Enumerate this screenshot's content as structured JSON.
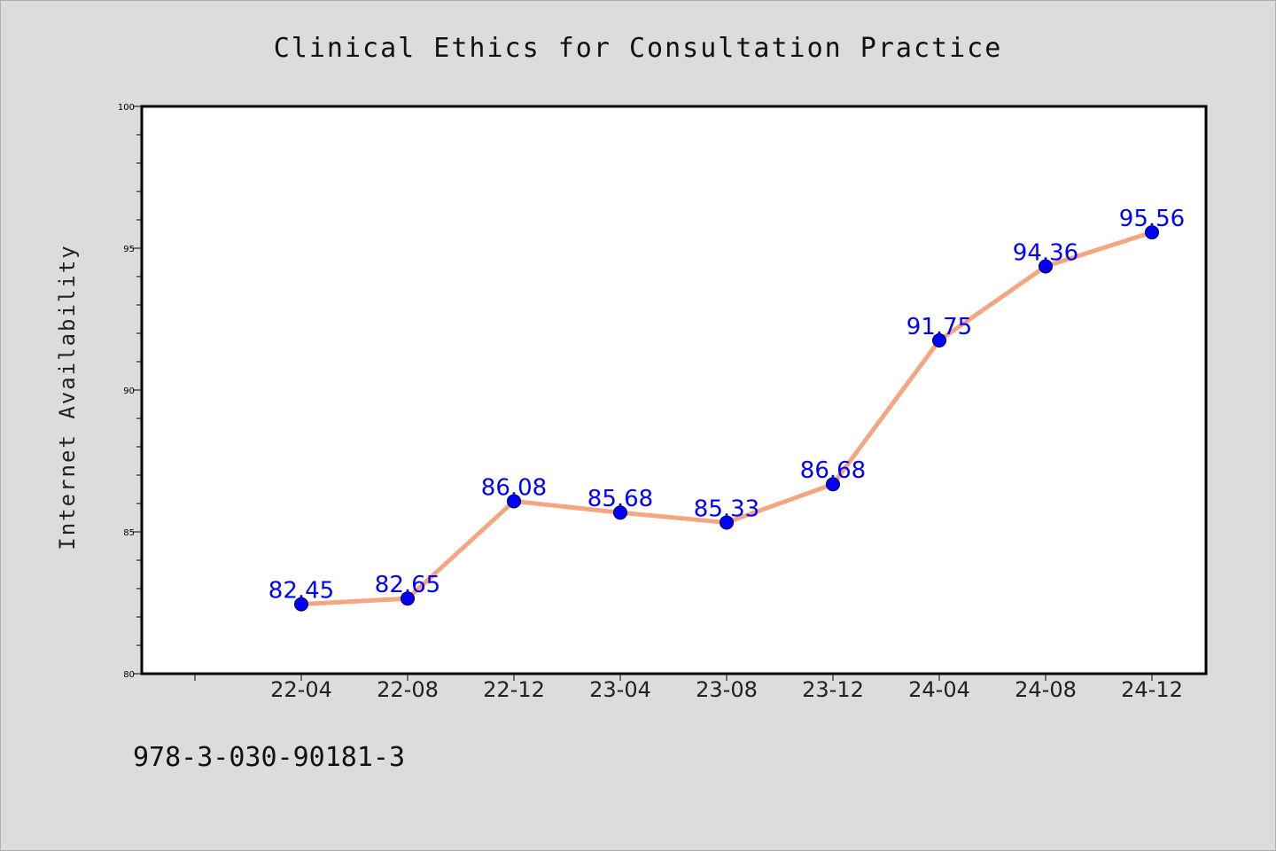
{
  "chart_data": {
    "type": "line",
    "title": "Clinical Ethics for Consultation Practice",
    "xlabel": "",
    "ylabel": "Internet Availability",
    "categories": [
      "22-04",
      "22-08",
      "22-12",
      "23-04",
      "23-08",
      "23-12",
      "24-04",
      "24-08",
      "24-12"
    ],
    "values": [
      82.45,
      82.65,
      86.08,
      85.68,
      85.33,
      86.68,
      91.75,
      94.36,
      95.56
    ],
    "value_labels": [
      "82.45",
      "82.65",
      "86.08",
      "85.68",
      "85.33",
      "86.68",
      "91.75",
      "94.36",
      "95.56"
    ],
    "ylim": [
      80,
      100
    ],
    "y_ticks": [
      80,
      85,
      90,
      95,
      100
    ],
    "grid": false,
    "legend": "none",
    "line_color": "#f4a582",
    "marker_color": "#0000ff",
    "label_color": "#0000ff"
  },
  "footer": {
    "isbn": "978-3-030-90181-3"
  }
}
